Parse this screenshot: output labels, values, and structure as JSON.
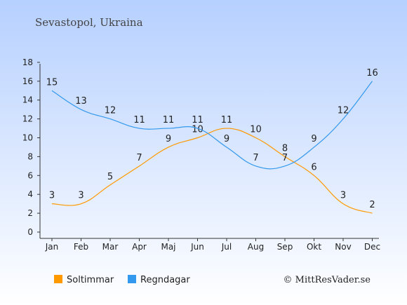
{
  "chart_data": {
    "type": "line",
    "subtitle": "Sevastopol, Ukraina",
    "categories": [
      "Jan",
      "Feb",
      "Mar",
      "Apr",
      "Maj",
      "Jun",
      "Jul",
      "Aug",
      "Sep",
      "Okt",
      "Nov",
      "Dec"
    ],
    "y_ticks": [
      "0",
      "2",
      "4",
      "6",
      "8",
      "10",
      "12",
      "14",
      "16",
      "18"
    ],
    "ylim": [
      0,
      18
    ],
    "grid": false,
    "legend_position": "bottom-left",
    "series": [
      {
        "name": "Soltimmar",
        "color": "#ff9900",
        "values": [
          3,
          3,
          5,
          7,
          9,
          10,
          11,
          10,
          8,
          6,
          3,
          2
        ]
      },
      {
        "name": "Regndagar",
        "color": "#3399ee",
        "values": [
          15,
          13,
          12,
          11,
          11,
          11,
          9,
          7,
          7,
          9,
          12,
          16
        ]
      }
    ],
    "credit": "© MittResVader.se",
    "background_top": "#b6d0ff",
    "background_bottom": "#ffffff"
  }
}
